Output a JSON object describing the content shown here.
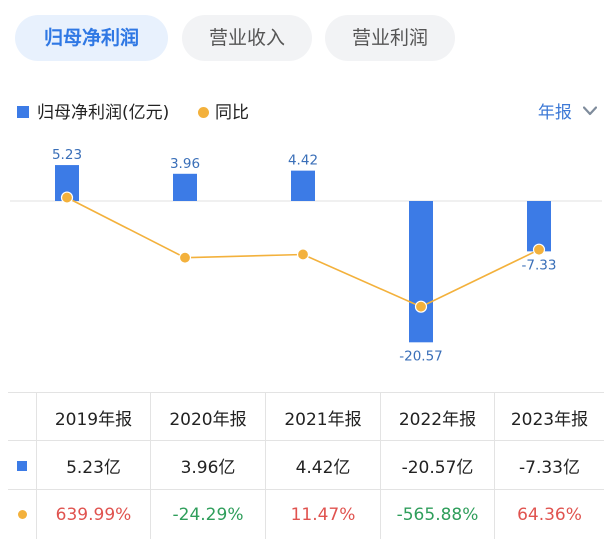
{
  "tabs": [
    {
      "label": "归母净利润",
      "active": true
    },
    {
      "label": "营业收入",
      "active": false
    },
    {
      "label": "营业利润",
      "active": false
    }
  ],
  "legend": {
    "bar_label": "归母净利润(亿元)",
    "line_label": "同比"
  },
  "period_selector": {
    "label": "年报"
  },
  "colors": {
    "bar": "#3c7be6",
    "line": "#f3b13c",
    "positive": "#e0534f",
    "negative": "#2f9e5b",
    "accent": "#2f78e4"
  },
  "chart_data": {
    "type": "bar",
    "categories": [
      "2019年报",
      "2020年报",
      "2021年报",
      "2022年报",
      "2023年报"
    ],
    "series": [
      {
        "name": "归母净利润(亿元)",
        "type": "bar",
        "values": [
          5.23,
          3.96,
          4.42,
          -20.57,
          -7.33
        ],
        "labels": [
          "5.23",
          "3.96",
          "4.42",
          "-20.57",
          "-7.33"
        ]
      },
      {
        "name": "同比",
        "type": "line",
        "values": [
          639.99,
          -24.29,
          11.47,
          -565.88,
          64.36
        ]
      }
    ]
  },
  "table": {
    "headers": [
      "2019年报",
      "2020年报",
      "2021年报",
      "2022年报",
      "2023年报"
    ],
    "profit_row": [
      "5.23亿",
      "3.96亿",
      "4.42亿",
      "-20.57亿",
      "-7.33亿"
    ],
    "yoy_row": [
      "639.99%",
      "-24.29%",
      "11.47%",
      "-565.88%",
      "64.36%"
    ]
  }
}
